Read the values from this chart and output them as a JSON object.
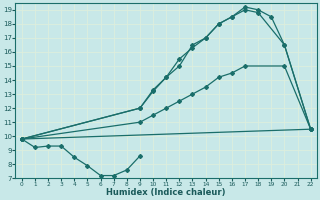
{
  "background_color": "#c8e8e8",
  "grid_color": "#b8d8d8",
  "line_color": "#1a6e6a",
  "xlabel": "Humidex (Indice chaleur)",
  "xlim": [
    -0.5,
    22.5
  ],
  "ylim": [
    7,
    19.5
  ],
  "xticks": [
    0,
    1,
    2,
    3,
    4,
    5,
    6,
    7,
    8,
    9,
    10,
    11,
    12,
    13,
    14,
    15,
    16,
    17,
    18,
    19,
    20,
    21,
    22
  ],
  "yticks": [
    7,
    8,
    9,
    10,
    11,
    12,
    13,
    14,
    15,
    16,
    17,
    18,
    19
  ],
  "line1_x": [
    0,
    1,
    2,
    3,
    4,
    5,
    6,
    7,
    8,
    9
  ],
  "line1_y": [
    9.8,
    9.2,
    9.3,
    9.3,
    8.5,
    7.9,
    7.2,
    7.2,
    7.6,
    8.6
  ],
  "line2_x": [
    0,
    22
  ],
  "line2_y": [
    9.8,
    10.5
  ],
  "line3_x": [
    0,
    9,
    10,
    11,
    12,
    13,
    14,
    15,
    16,
    17,
    20,
    22
  ],
  "line3_y": [
    9.8,
    11.0,
    11.5,
    12.0,
    12.5,
    13.0,
    13.5,
    14.2,
    14.5,
    15.0,
    15.0,
    10.5
  ],
  "line4_x": [
    0,
    9,
    10,
    11,
    12,
    13,
    14,
    15,
    16,
    17,
    18,
    20,
    22
  ],
  "line4_y": [
    9.8,
    12.0,
    13.2,
    14.2,
    15.0,
    16.5,
    17.0,
    18.0,
    18.5,
    19.0,
    18.8,
    16.5,
    10.5
  ],
  "line5_x": [
    0,
    9,
    10,
    11,
    12,
    13,
    14,
    15,
    16,
    17,
    18,
    19,
    20,
    22
  ],
  "line5_y": [
    9.8,
    12.0,
    13.3,
    14.2,
    15.5,
    16.3,
    17.0,
    18.0,
    18.5,
    19.2,
    19.0,
    18.5,
    16.5,
    10.5
  ]
}
